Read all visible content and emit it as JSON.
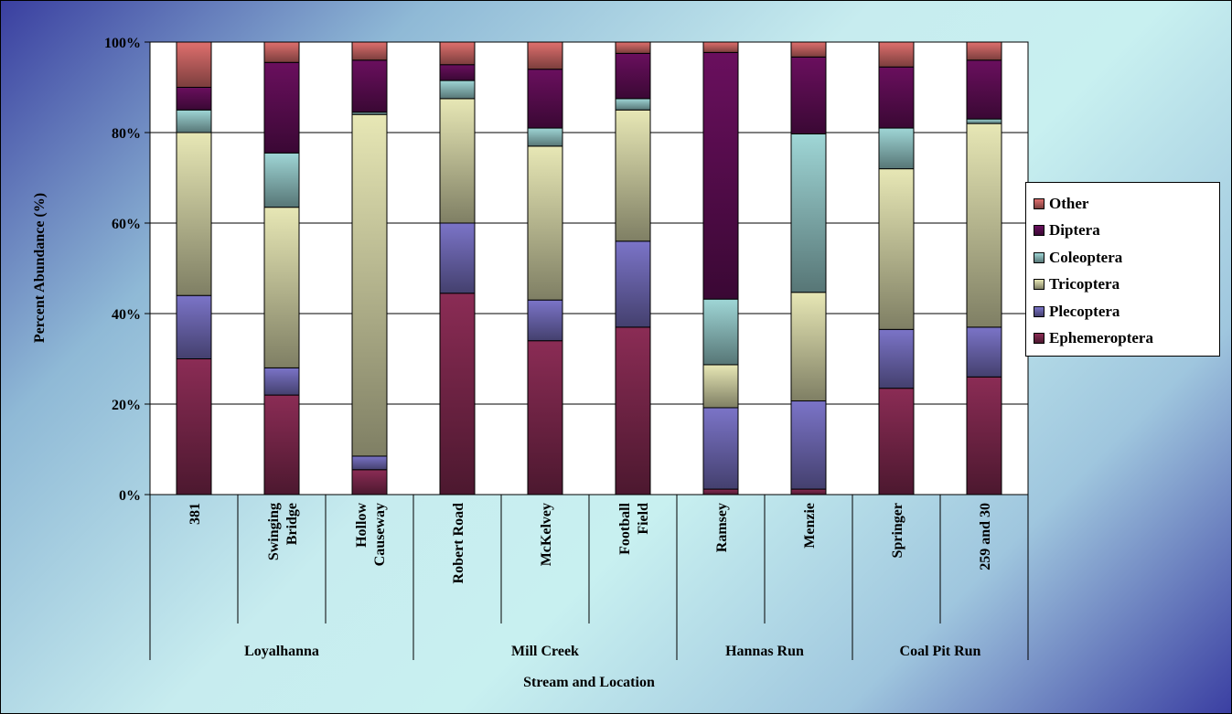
{
  "chart_data": {
    "type": "bar",
    "stacked": true,
    "percent": true,
    "title": "",
    "xlabel": "Stream and Location",
    "ylabel": "Percent Abundance (%)",
    "ylim": [
      0,
      100
    ],
    "yticks": [
      "0%",
      "20%",
      "40%",
      "60%",
      "80%",
      "100%"
    ],
    "categories": [
      "381",
      "Swinging Bridge",
      "Hollow Causeway",
      "Robert Road",
      "McKelvey",
      "Football Field",
      "Ramsey",
      "Menzie",
      "Springer",
      "259 and 30"
    ],
    "groups": [
      {
        "name": "Loyalhanna",
        "count": 3
      },
      {
        "name": "Mill Creek",
        "count": 3
      },
      {
        "name": "Hannas Run",
        "count": 2
      },
      {
        "name": "Coal Pit Run",
        "count": 2
      }
    ],
    "series": [
      {
        "name": "Ephemeroptera",
        "color": "#8b2c55",
        "values": [
          30,
          22,
          5.5,
          44.5,
          34,
          37,
          1.2,
          1.2,
          23.5,
          26
        ]
      },
      {
        "name": "Plecoptera",
        "color": "#7b74c8",
        "values": [
          14,
          6,
          3,
          15.5,
          9,
          19,
          18,
          19.5,
          13,
          11
        ]
      },
      {
        "name": "Tricoptera",
        "color": "#e7e7b5",
        "values": [
          36,
          35.5,
          75.5,
          27.5,
          34,
          29,
          9.5,
          24,
          35.5,
          45
        ]
      },
      {
        "name": "Coleoptera",
        "color": "#9fd6d6",
        "values": [
          5,
          12,
          0.5,
          4,
          4,
          2.5,
          14.5,
          35,
          9,
          1
        ]
      },
      {
        "name": "Diptera",
        "color": "#6a0f5e",
        "values": [
          5,
          20,
          11.5,
          3.5,
          13,
          10,
          54.5,
          17,
          13.5,
          13
        ]
      },
      {
        "name": "Other",
        "color": "#e0706e",
        "values": [
          10,
          4.5,
          4,
          5,
          6,
          2.5,
          2.3,
          3.3,
          5.5,
          4
        ]
      }
    ],
    "legend_position": "right",
    "grid": true
  }
}
